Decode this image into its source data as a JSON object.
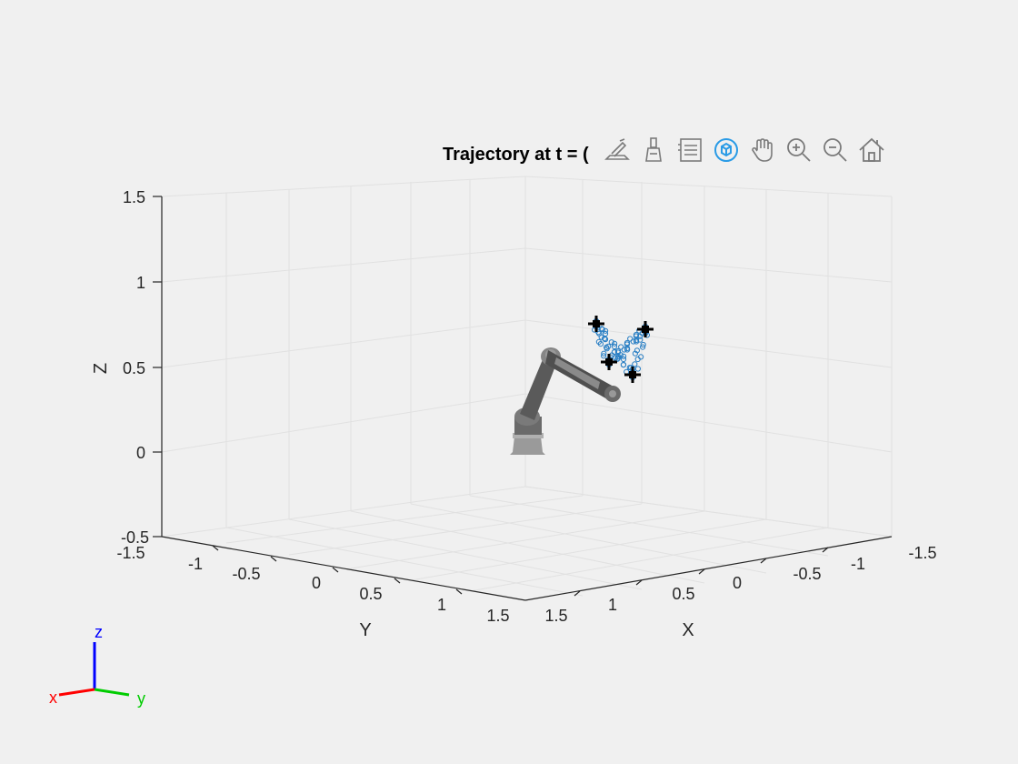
{
  "plot": {
    "title": "Trajectory at t = ("
  },
  "axes": {
    "z_label": "Z",
    "y_label": "Y",
    "x_label": "X",
    "z_ticks": [
      "1.5",
      "1",
      "0.5",
      "0",
      "-0.5"
    ],
    "y_ticks": [
      "-1.5",
      "-1",
      "-0.5",
      "0",
      "0.5",
      "1",
      "1.5"
    ],
    "x_ticks": [
      "1.5",
      "1",
      "0.5",
      "0",
      "-0.5",
      "-1",
      "-1.5"
    ]
  },
  "toolbar": {
    "tools": [
      "brush-export-icon",
      "data-brush-icon",
      "legend-icon",
      "rotate-3d-icon",
      "pan-icon",
      "zoom-in-icon",
      "zoom-out-icon",
      "home-icon"
    ],
    "active_tool": "rotate-3d-icon",
    "active_color": "#2a9be6"
  },
  "triad": {
    "x": "x",
    "y": "y",
    "z": "z",
    "x_color": "#ff0000",
    "y_color": "#00cc00",
    "z_color": "#0000ff"
  },
  "colors": {
    "trajectory": "#2a7fc4",
    "waypoint": "#000000",
    "robot": "#6e6e6e"
  }
}
